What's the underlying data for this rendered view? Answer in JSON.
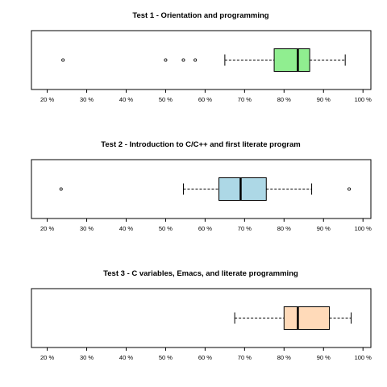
{
  "chart_data": [
    {
      "type": "boxplot",
      "title": "Test 1 - Orientation and programming",
      "xlim": [
        16,
        102
      ],
      "ticks": [
        20,
        30,
        40,
        50,
        60,
        70,
        80,
        90,
        100
      ],
      "tick_labels": [
        "20 %",
        "30 %",
        "40 %",
        "50 %",
        "60 %",
        "70 %",
        "80 %",
        "90 %",
        "100 %"
      ],
      "whisker_low": 65,
      "q1": 77.5,
      "median": 83.5,
      "q3": 86.5,
      "whisker_high": 95.5,
      "outliers": [
        24,
        50,
        54.5,
        57.5
      ],
      "fill": "#90ee90"
    },
    {
      "type": "boxplot",
      "title": "Test 2 - Introduction to C/C++ and first literate program",
      "xlim": [
        16,
        102
      ],
      "ticks": [
        20,
        30,
        40,
        50,
        60,
        70,
        80,
        90,
        100
      ],
      "tick_labels": [
        "20 %",
        "30 %",
        "40 %",
        "50 %",
        "60 %",
        "70 %",
        "80 %",
        "90 %",
        "100 %"
      ],
      "whisker_low": 54.5,
      "q1": 63.5,
      "median": 69,
      "q3": 75.5,
      "whisker_high": 87,
      "outliers": [
        23.5,
        96.5
      ],
      "fill": "#add8e6"
    },
    {
      "type": "boxplot",
      "title": "Test 3 - C variables, Emacs, and literate programming",
      "xlim": [
        16,
        102
      ],
      "ticks": [
        20,
        30,
        40,
        50,
        60,
        70,
        80,
        90,
        100
      ],
      "tick_labels": [
        "20 %",
        "30 %",
        "40 %",
        "50 %",
        "60 %",
        "70 %",
        "80 %",
        "90 %",
        "100 %"
      ],
      "whisker_low": 67.5,
      "q1": 80,
      "median": 83.5,
      "q3": 91.5,
      "whisker_high": 97,
      "outliers": [],
      "fill": "#ffdab9"
    }
  ]
}
